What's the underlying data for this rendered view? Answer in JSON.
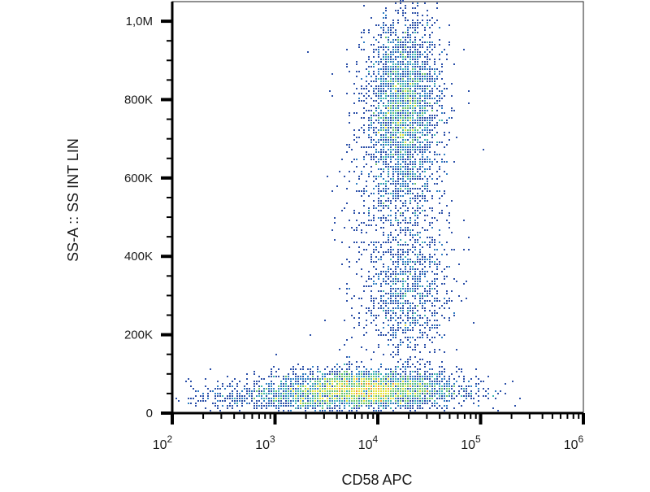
{
  "chart_data": {
    "type": "scatter",
    "subtype": "flow-cytometry density dot plot",
    "xlabel": "CD58 APC",
    "ylabel": "SS-A :: SS INT LIN",
    "x_scale": "log",
    "xlim": [
      100,
      1000000
    ],
    "x_ticks": [
      {
        "value": 100,
        "base": "10",
        "exp": "2"
      },
      {
        "value": 1000,
        "base": "10",
        "exp": "3"
      },
      {
        "value": 10000,
        "base": "10",
        "exp": "4"
      },
      {
        "value": 100000,
        "base": "10",
        "exp": "5"
      },
      {
        "value": 1000000,
        "base": "10",
        "exp": "6"
      }
    ],
    "y_scale": "linear",
    "ylim": [
      0,
      1050000
    ],
    "y_ticks": [
      {
        "value": 0,
        "label": "0"
      },
      {
        "value": 200000,
        "label": "200K"
      },
      {
        "value": 400000,
        "label": "400K"
      },
      {
        "value": 600000,
        "label": "600K"
      },
      {
        "value": 800000,
        "label": "800K"
      },
      {
        "value": 1000000,
        "label": "1,0M"
      }
    ],
    "grid": false,
    "legend": "none",
    "density_colors": [
      "#2b4fa8",
      "#2f7fc4",
      "#3fb5b0",
      "#6cc46a",
      "#e6e23a",
      "#f39a2a",
      "#e8321e"
    ],
    "populations": [
      {
        "x_center": 8000,
        "x_log_spread": 0.45,
        "y_center": 60000,
        "y_spread": 25000,
        "count": 3200
      },
      {
        "x_center": 18000,
        "x_log_spread": 0.18,
        "y_center": 780000,
        "y_spread": 120000,
        "count": 2600
      },
      {
        "x_center": 20000,
        "x_log_spread": 0.2,
        "y_center": 300000,
        "y_spread": 80000,
        "count": 700
      },
      {
        "x_center": 15000,
        "x_log_spread": 0.25,
        "y_center": 500000,
        "y_spread": 200000,
        "count": 900
      },
      {
        "x_center": 1500,
        "x_log_spread": 0.5,
        "y_center": 40000,
        "y_spread": 20000,
        "count": 700
      }
    ]
  }
}
